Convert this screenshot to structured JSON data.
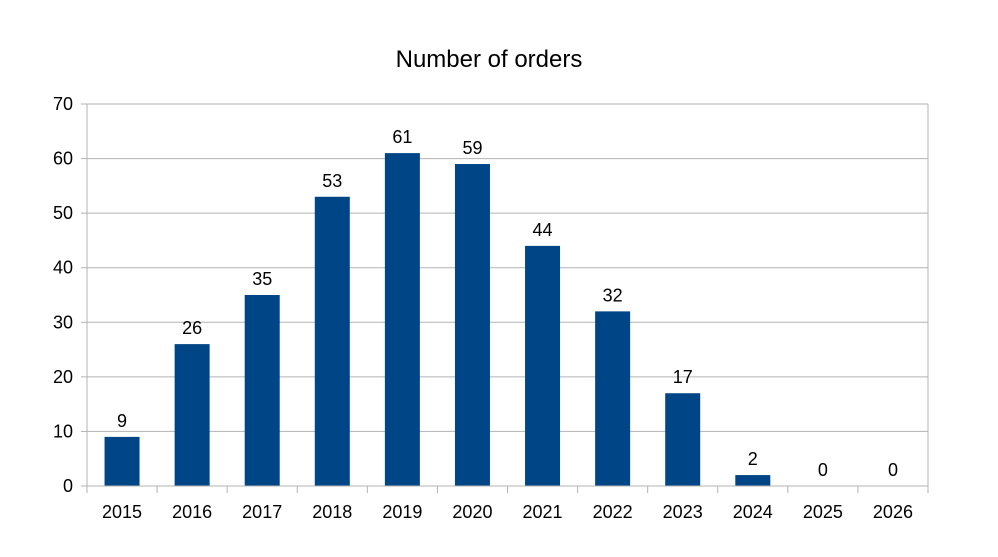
{
  "chart_data": {
    "type": "bar",
    "title": "Number of orders",
    "xlabel": "",
    "ylabel": "",
    "categories": [
      "2015",
      "2016",
      "2017",
      "2018",
      "2019",
      "2020",
      "2021",
      "2022",
      "2023",
      "2024",
      "2025",
      "2026"
    ],
    "values": [
      9,
      26,
      35,
      53,
      61,
      59,
      44,
      32,
      17,
      2,
      0,
      0
    ],
    "ylim": [
      0,
      70
    ],
    "yticks": [
      0,
      10,
      20,
      30,
      40,
      50,
      60,
      70
    ],
    "grid": true,
    "legend": "none",
    "bar_color": "#004586",
    "grid_color": "#b3b3b3"
  }
}
